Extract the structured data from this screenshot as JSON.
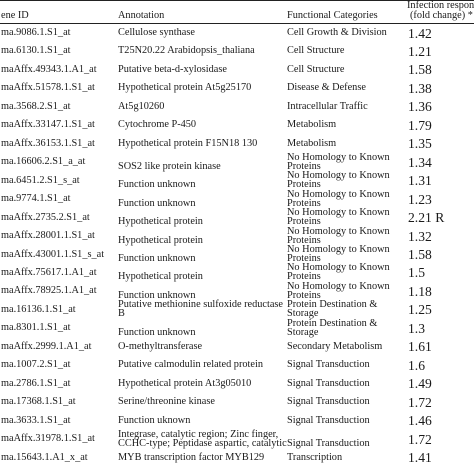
{
  "header": {
    "gene_id": "ene ID",
    "annotation": "Annotation",
    "functional_categories": "Functional Categories",
    "infection_line1": "Infection respon",
    "infection_line2": "(fold change) *"
  },
  "rows": [
    {
      "gene_id": "ma.9086.1.S1_at",
      "annotation": [
        "Cellulose synthase"
      ],
      "category": [
        "Cell Growth & Division"
      ],
      "value": "1.42"
    },
    {
      "gene_id": "ma.6130.1.S1_at",
      "annotation": [
        "T25N20.22 Arabidopsis_thaliana"
      ],
      "category": [
        "Cell Structure"
      ],
      "value": "1.21"
    },
    {
      "gene_id": "maAffx.49343.1.A1_at",
      "annotation": [
        "Putative beta-d-xylosidase"
      ],
      "category": [
        "Cell Structure"
      ],
      "value": "1.58"
    },
    {
      "gene_id": "maAffx.51578.1.S1_at",
      "annotation": [
        "Hypothetical protein At5g25170"
      ],
      "category": [
        "Disease & Defense"
      ],
      "value": "1.38"
    },
    {
      "gene_id": "ma.3568.2.S1_at",
      "annotation": [
        "At5g10260"
      ],
      "category": [
        "Intracellular Traffic"
      ],
      "value": "1.36"
    },
    {
      "gene_id": "maAffx.33147.1.S1_at",
      "annotation": [
        "Cytochrome P-450"
      ],
      "category": [
        "Metabolism"
      ],
      "value": "1.79"
    },
    {
      "gene_id": "maAffx.36153.1.S1_at",
      "annotation": [
        "Hypothetical protein F15N18 130"
      ],
      "category": [
        "Metabolism"
      ],
      "value": "1.35"
    },
    {
      "gene_id": "ma.16606.2.S1_a_at",
      "annotation": [
        "SOS2 like protein kinase"
      ],
      "category": [
        "No Homology to Known",
        "Proteins"
      ],
      "value": "1.34"
    },
    {
      "gene_id": "ma.6451.2.S1_s_at",
      "annotation": [
        "Function unknown"
      ],
      "category": [
        "No Homology to Known",
        "Proteins"
      ],
      "value": "1.31"
    },
    {
      "gene_id": "ma.9774.1.S1_at",
      "annotation": [
        "Function unknown"
      ],
      "category": [
        "No Homology to Known",
        "Proteins"
      ],
      "value": "1.23"
    },
    {
      "gene_id": "maAffx.2735.2.S1_at",
      "annotation": [
        "Hypothetical protein"
      ],
      "category": [
        "No Homology to Known",
        "Proteins"
      ],
      "value": "2.21 R"
    },
    {
      "gene_id": "maAffx.28001.1.S1_at",
      "annotation": [
        "Hypothetical protein"
      ],
      "category": [
        "No Homology to Known",
        "Proteins"
      ],
      "value": "1.32"
    },
    {
      "gene_id": "maAffx.43001.1.S1_s_at",
      "annotation": [
        "Function unknown"
      ],
      "category": [
        "No Homology to Known",
        "Proteins"
      ],
      "value": "1.58"
    },
    {
      "gene_id": "maAffx.75617.1.A1_at",
      "annotation": [
        "Hypothetical protein"
      ],
      "category": [
        "No Homology to Known",
        "Proteins"
      ],
      "value": "1.5"
    },
    {
      "gene_id": "maAffx.78925.1.A1_at",
      "annotation": [
        "Function unknown"
      ],
      "category": [
        "No Homology to Known",
        "Proteins"
      ],
      "value": "1.18"
    },
    {
      "gene_id": "ma.16136.1.S1_at",
      "annotation": [
        "Putative methionine sulfoxide reductase",
        "B"
      ],
      "category": [
        "Protein Destination &",
        "Storage"
      ],
      "value": "1.25"
    },
    {
      "gene_id": "ma.8301.1.S1_at",
      "annotation": [
        "Function unknown"
      ],
      "category": [
        "Protein Destination &",
        "Storage"
      ],
      "value": "1.3"
    },
    {
      "gene_id": "maAffx.2999.1.A1_at",
      "annotation": [
        "O-methyltransferase"
      ],
      "category": [
        "Secondary Metabolism"
      ],
      "value": "1.61"
    },
    {
      "gene_id": "ma.1007.2.S1_at",
      "annotation": [
        "Putative calmodulin related protein"
      ],
      "category": [
        "Signal Transduction"
      ],
      "value": "1.6"
    },
    {
      "gene_id": "ma.2786.1.S1_at",
      "annotation": [
        "Hypothetical protein At3g05010"
      ],
      "category": [
        "Signal Transduction"
      ],
      "value": "1.49"
    },
    {
      "gene_id": "ma.17368.1.S1_at",
      "annotation": [
        "Serine/threonine kinase"
      ],
      "category": [
        "Signal Transduction"
      ],
      "value": "1.72"
    },
    {
      "gene_id": "ma.3633.1.S1_at",
      "annotation": [
        "Function uknown"
      ],
      "category": [
        "Signal Transduction"
      ],
      "value": "1.46"
    },
    {
      "gene_id": "maAffx.31978.1.S1_at",
      "annotation": [
        "Integrase, catalytic region; Zinc finger,",
        "CCHC-type; Peptidase aspartic, catalytic"
      ],
      "category": [
        "Signal Transduction"
      ],
      "value": "1.72"
    },
    {
      "gene_id": "ma.15643.1.A1_x_at",
      "annotation": [
        "MYB transcription factor MYB129"
      ],
      "category": [
        "Transcription"
      ],
      "value": "1.41"
    }
  ]
}
